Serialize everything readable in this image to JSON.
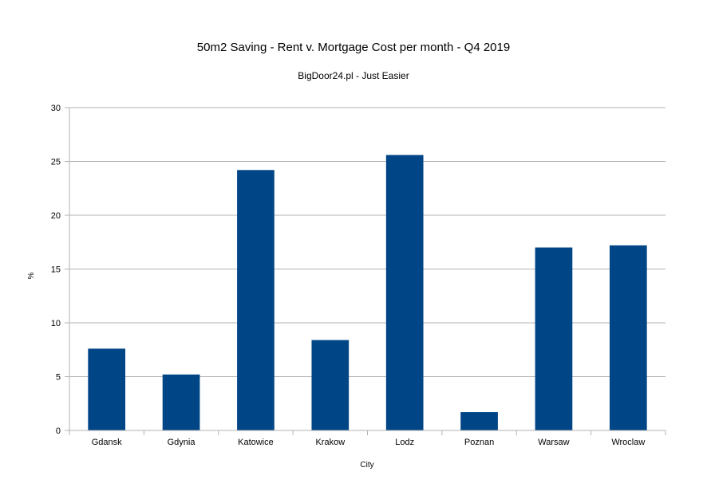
{
  "chart_data": {
    "type": "bar",
    "title": "50m2 Saving - Rent v. Mortgage Cost per month - Q4 2019",
    "subtitle": "BigDoor24.pl - Just Easier",
    "xlabel": "City",
    "ylabel": "%",
    "categories": [
      "Gdansk",
      "Gdynia",
      "Katowice",
      "Krakow",
      "Lodz",
      "Poznan",
      "Warsaw",
      "Wroclaw"
    ],
    "values": [
      7.6,
      5.2,
      24.2,
      8.4,
      25.6,
      1.7,
      17.0,
      17.2
    ],
    "ylim": [
      0,
      30
    ],
    "yticks": [
      "0",
      "5",
      "10",
      "15",
      "20",
      "25",
      "30"
    ],
    "grid": true,
    "legend": "none",
    "bar_color": "#004586",
    "grid_color": "#b3b3b3"
  }
}
